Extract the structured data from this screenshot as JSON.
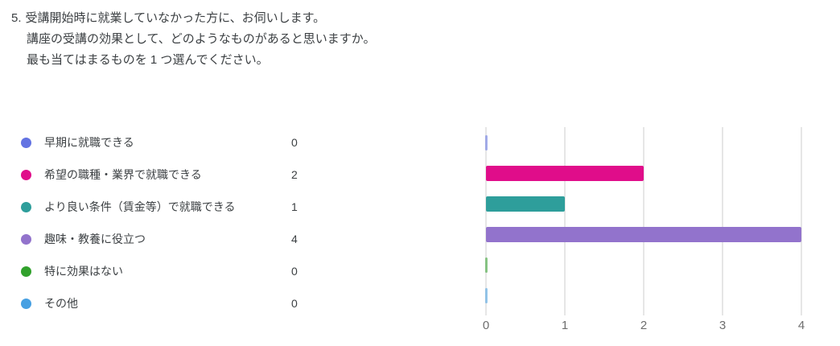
{
  "question": {
    "number": "5.",
    "lines": [
      "受講開始時に就業していなかった方に、お伺いします。",
      "講座の受講の効果として、どのようなものがあると思いますか。",
      "最も当てはまるものを 1 つ選んでください。"
    ]
  },
  "chart_data": {
    "type": "bar",
    "orientation": "horizontal",
    "title": "",
    "categories": [
      "早期に就職できる",
      "希望の職種・業界で就職できる",
      "より良い条件（賃金等）で就職できる",
      "趣味・教養に役立つ",
      "特に効果はない",
      "その他"
    ],
    "values": [
      0,
      2,
      1,
      4,
      0,
      0
    ],
    "colors": [
      "#6373E2",
      "#E00D8A",
      "#2E9E9B",
      "#9273CC",
      "#31A12C",
      "#47A0E2"
    ],
    "xlim": [
      0,
      4
    ],
    "x_ticks": [
      "0",
      "1",
      "2",
      "3",
      "4"
    ],
    "grid": true,
    "legend_position": "left",
    "text_color": "#3c4043",
    "tick_color": "#6e6e6e",
    "grid_color": "#e6e6e6"
  }
}
